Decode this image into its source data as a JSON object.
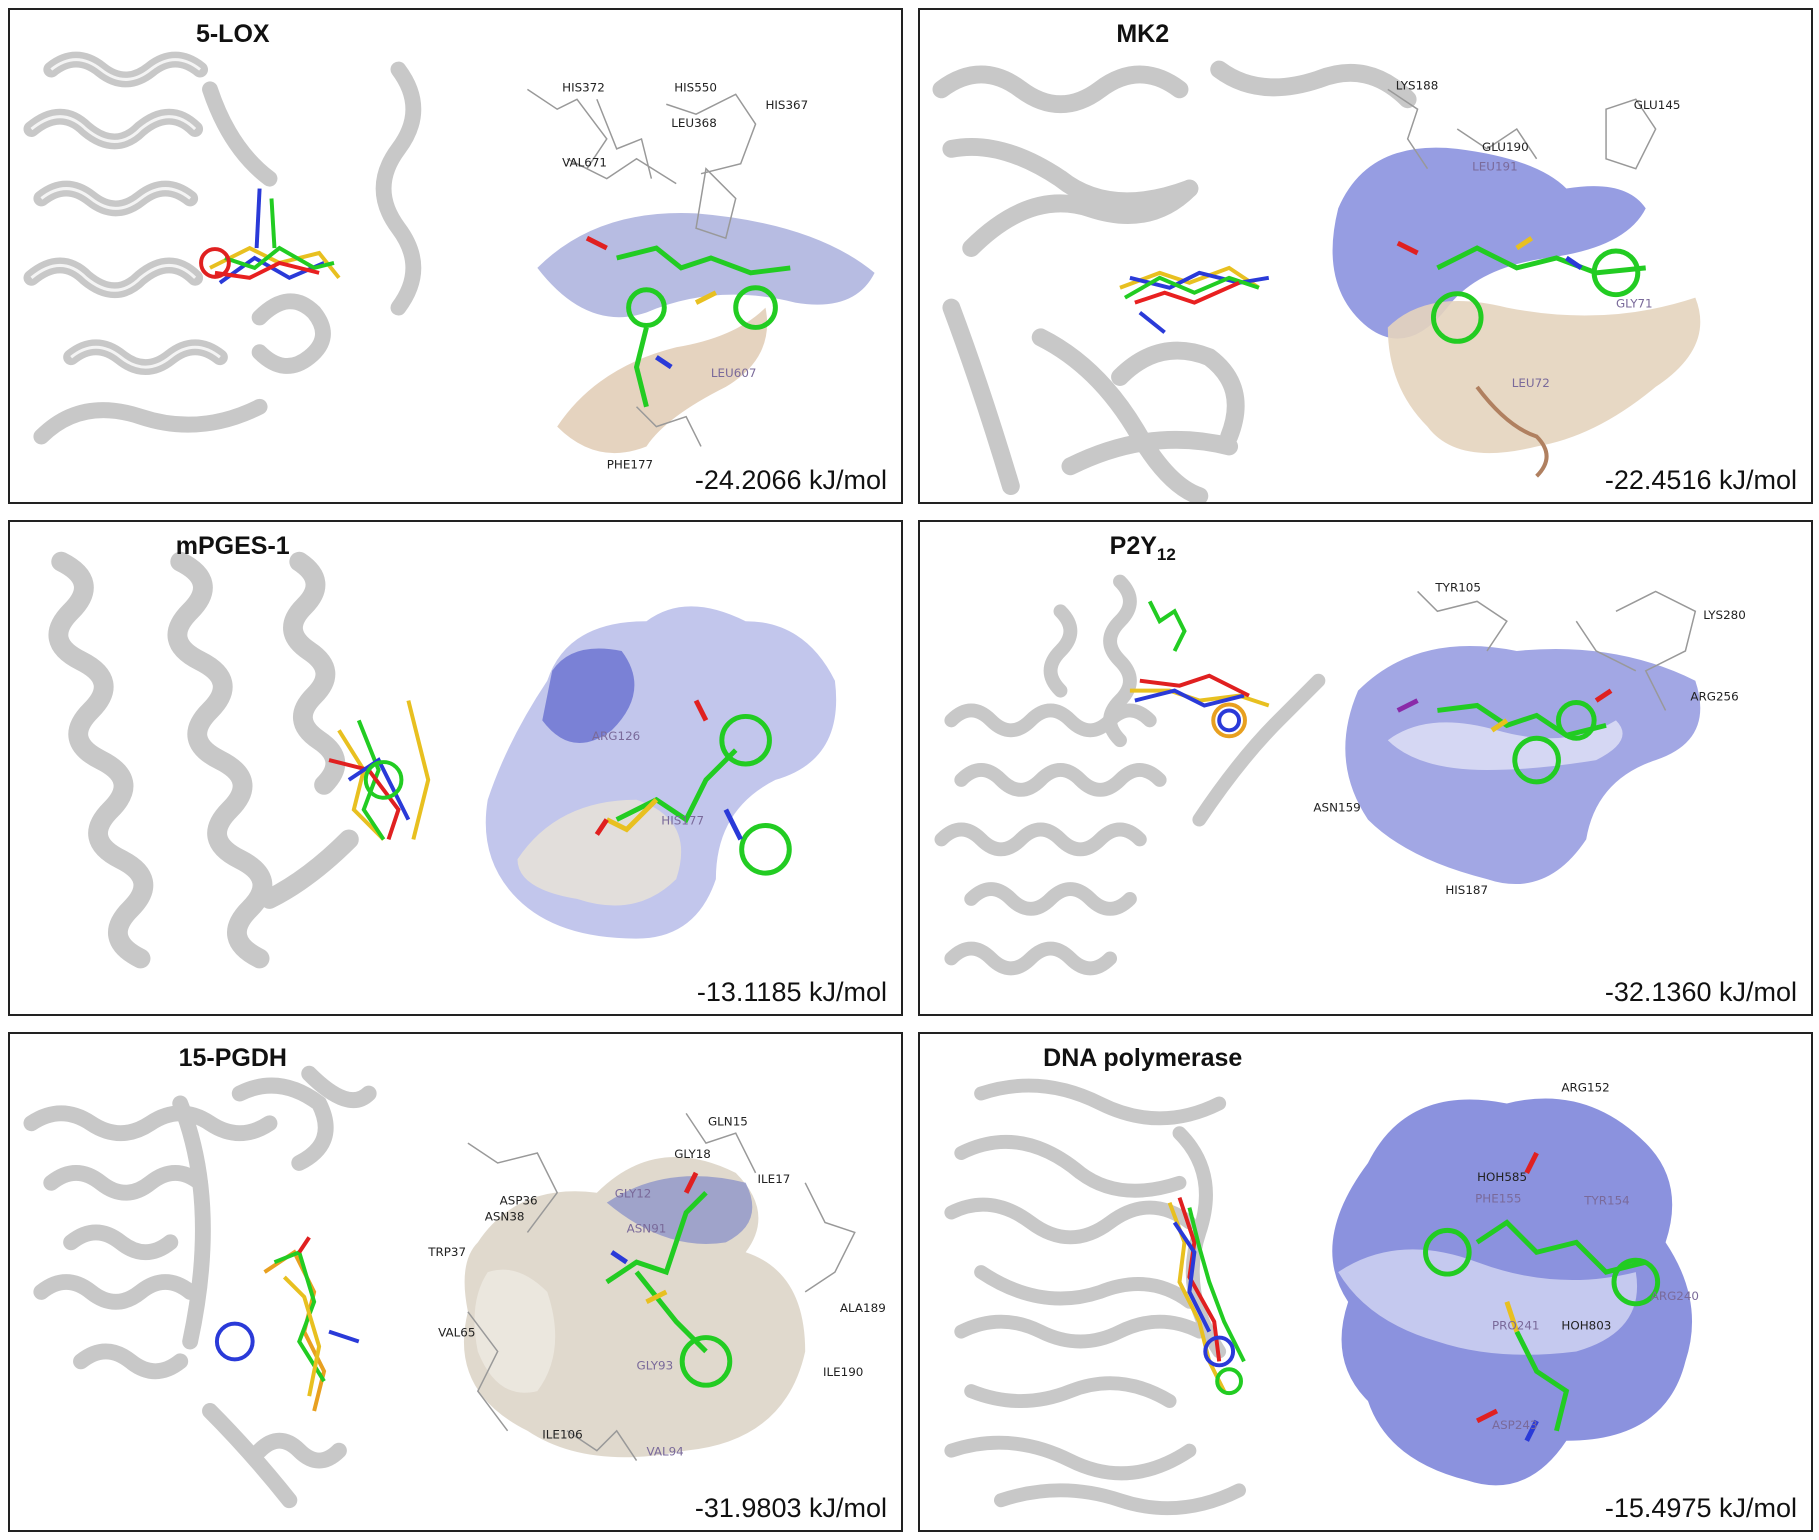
{
  "panels": [
    {
      "id": "5lox",
      "title": "5-LOX",
      "title_sub": "",
      "energy": "-24.2066 kJ/mol",
      "surface": "brown",
      "residues": [
        "HIS372",
        "HIS550",
        "HIS367",
        "LEU368",
        "VAL671",
        "LEU607",
        "PHE177"
      ]
    },
    {
      "id": "mk2",
      "title": "MK2",
      "title_sub": "",
      "energy": "-22.4516 kJ/mol",
      "surface": "blue",
      "residues": [
        "LYS188",
        "GLU145",
        "GLU190",
        "LEU191",
        "GLY71",
        "LEU72"
      ]
    },
    {
      "id": "mpges1",
      "title": "mPGES-1",
      "title_sub": "",
      "energy": "-13.1185 kJ/mol",
      "surface": "blue",
      "residues": [
        "ARG126",
        "HIS177"
      ]
    },
    {
      "id": "p2y12",
      "title": "P2Y",
      "title_sub": "12",
      "energy": "-32.1360 kJ/mol",
      "surface": "blue",
      "residues": [
        "TYR105",
        "LYS280",
        "ARG256",
        "ASN159",
        "HIS187"
      ]
    },
    {
      "id": "15pgdh",
      "title": "15-PGDH",
      "title_sub": "",
      "energy": "-31.9803 kJ/mol",
      "surface": "brown",
      "residues": [
        "GLN15",
        "GLY18",
        "ILE17",
        "ASP36",
        "ASN38",
        "GLY12",
        "TRP37",
        "ASN91",
        "ALA189",
        "VAL65",
        "GLY93",
        "ILE190",
        "VAL94",
        "ILE106"
      ]
    },
    {
      "id": "dnapol",
      "title": "DNA polymerase",
      "title_sub": "",
      "energy": "-15.4975 kJ/mol",
      "surface": "blue",
      "residues": [
        "ARG152",
        "HOH585",
        "PHE155",
        "TYR154",
        "ARG240",
        "PRO241",
        "HOH803",
        "ASP243"
      ]
    }
  ]
}
